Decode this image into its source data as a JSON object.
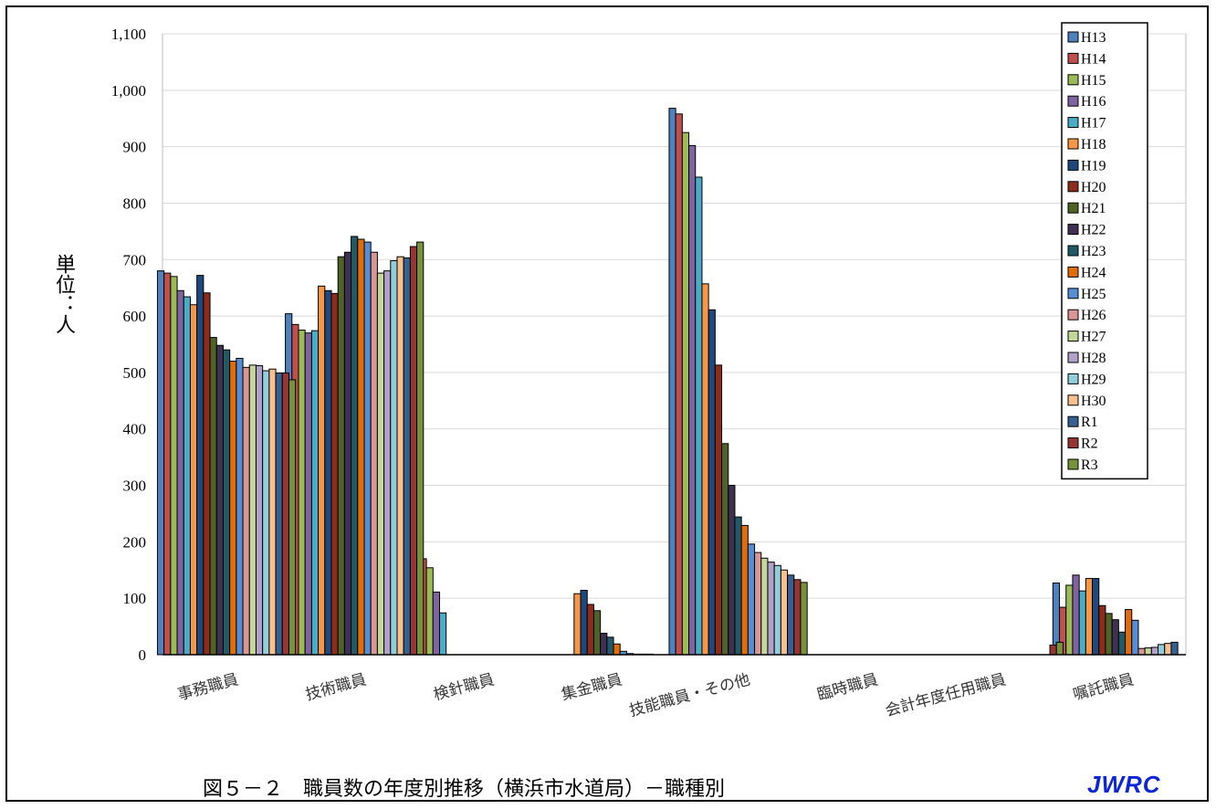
{
  "chart_data": {
    "type": "bar",
    "title": "",
    "xlabel": "",
    "ylabel": "単位：人",
    "ylim": [
      0,
      1100
    ],
    "yticks": [
      "0",
      "100",
      "200",
      "300",
      "400",
      "500",
      "600",
      "700",
      "800",
      "900",
      "1,000",
      "1,100"
    ],
    "grid": true,
    "legend_position": "top-right",
    "categories": [
      "事務職員",
      "技術職員",
      "検針職員",
      "集金職員",
      "技能職員・その他",
      "臨時職員",
      "会計年度任用職員",
      "嘱託職員"
    ],
    "series": [
      {
        "name": "H13",
        "color": "#4f81bd",
        "values": [
          680,
          604,
          186,
          null,
          968,
          null,
          null,
          127
        ]
      },
      {
        "name": "H14",
        "color": "#c0504d",
        "values": [
          676,
          585,
          170,
          null,
          958,
          null,
          null,
          84
        ]
      },
      {
        "name": "H15",
        "color": "#9bbb59",
        "values": [
          670,
          575,
          154,
          null,
          925,
          null,
          null,
          123
        ]
      },
      {
        "name": "H16",
        "color": "#8064a2",
        "values": [
          645,
          570,
          111,
          null,
          902,
          null,
          null,
          141
        ]
      },
      {
        "name": "H17",
        "color": "#4bacc6",
        "values": [
          634,
          574,
          74,
          null,
          846,
          null,
          null,
          113
        ]
      },
      {
        "name": "H18",
        "color": "#f79646",
        "values": [
          620,
          653,
          null,
          108,
          657,
          null,
          null,
          135
        ]
      },
      {
        "name": "H19",
        "color": "#1f497d",
        "values": [
          672,
          645,
          null,
          114,
          611,
          null,
          null,
          135
        ]
      },
      {
        "name": "H20",
        "color": "#8c2d1c",
        "values": [
          641,
          640,
          null,
          89,
          513,
          null,
          null,
          87
        ]
      },
      {
        "name": "H21",
        "color": "#4f6228",
        "values": [
          562,
          705,
          null,
          78,
          374,
          null,
          null,
          73
        ]
      },
      {
        "name": "H22",
        "color": "#3f3151",
        "values": [
          548,
          713,
          null,
          38,
          300,
          null,
          null,
          62
        ]
      },
      {
        "name": "H23",
        "color": "#215967",
        "values": [
          540,
          741,
          null,
          31,
          244,
          null,
          null,
          40
        ]
      },
      {
        "name": "H24",
        "color": "#e26b0a",
        "values": [
          520,
          736,
          null,
          19,
          229,
          null,
          null,
          80
        ]
      },
      {
        "name": "H25",
        "color": "#558ed5",
        "values": [
          525,
          731,
          null,
          6,
          196,
          null,
          null,
          61
        ]
      },
      {
        "name": "H26",
        "color": "#da9694",
        "values": [
          509,
          713,
          null,
          2,
          181,
          null,
          null,
          11
        ]
      },
      {
        "name": "H27",
        "color": "#c4d79b",
        "values": [
          513,
          676,
          null,
          1,
          171,
          null,
          null,
          12
        ]
      },
      {
        "name": "H28",
        "color": "#b1a0c7",
        "values": [
          512,
          680,
          null,
          1,
          164,
          null,
          null,
          13
        ]
      },
      {
        "name": "H29",
        "color": "#92cddc",
        "values": [
          503,
          698,
          null,
          1,
          158,
          null,
          null,
          18
        ]
      },
      {
        "name": "H30",
        "color": "#fabf8f",
        "values": [
          506,
          705,
          null,
          null,
          150,
          null,
          null,
          20
        ]
      },
      {
        "name": "R1",
        "color": "#366092",
        "values": [
          499,
          703,
          null,
          null,
          141,
          null,
          null,
          22
        ]
      },
      {
        "name": "R2",
        "color": "#963634",
        "values": [
          499,
          723,
          null,
          null,
          133,
          null,
          17,
          null
        ]
      },
      {
        "name": "R3",
        "color": "#76933c",
        "values": [
          487,
          731,
          null,
          null,
          128,
          null,
          22,
          null
        ]
      }
    ]
  },
  "caption": "図５－２　職員数の年度別推移（横浜市水道局）－職種別",
  "logo": "JWRC"
}
